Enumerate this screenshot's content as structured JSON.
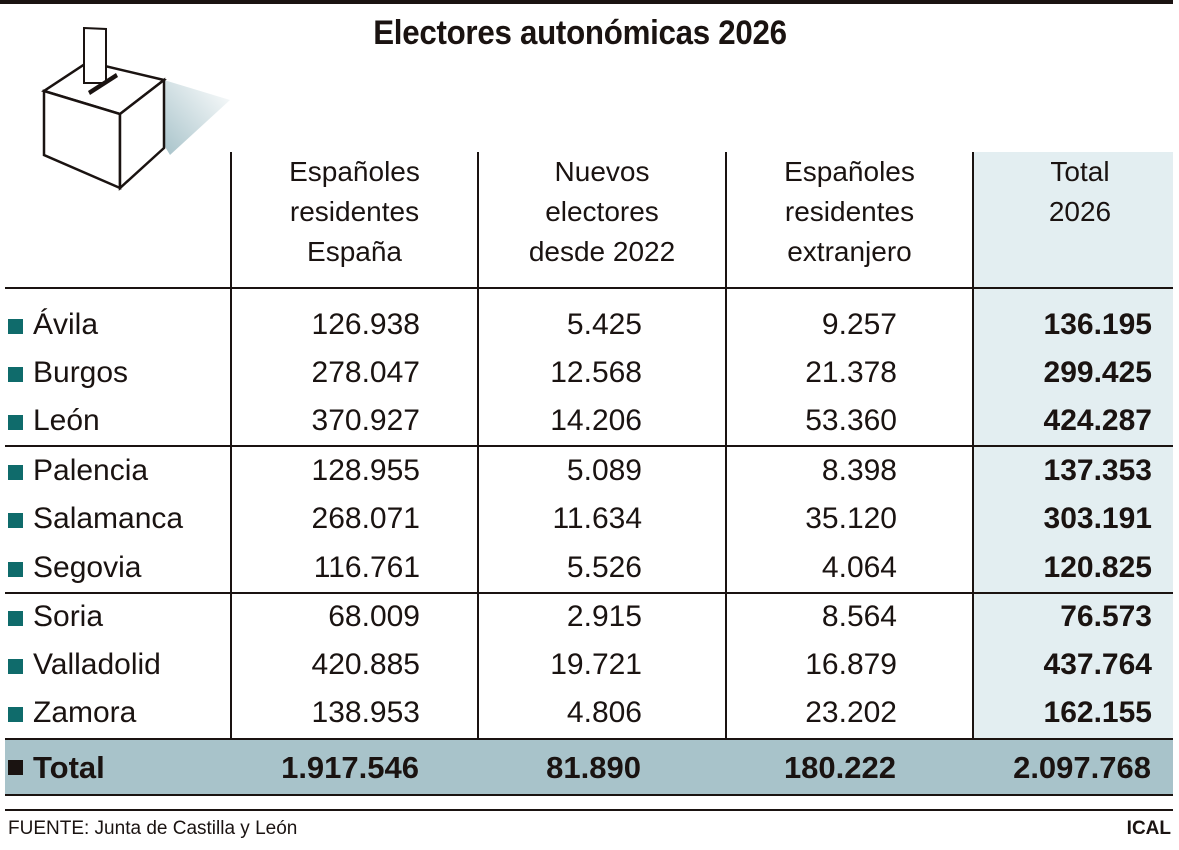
{
  "title": "Electores autonómicas 2026",
  "icon": "ballot-box-icon",
  "colors": {
    "marker": "#0f6b6b",
    "total_marker": "#1a1311",
    "total_column_bg": "#e3eef1",
    "total_row_bg": "#a8c3ca"
  },
  "chart_data": {
    "type": "table",
    "columns": [
      [
        "Españoles",
        "residentes",
        "España"
      ],
      [
        "Nuevos",
        "electores",
        "desde 2022"
      ],
      [
        "Españoles",
        "residentes",
        "extranjero"
      ],
      [
        "Total",
        "2026"
      ]
    ],
    "rows": [
      {
        "label": "Ávila",
        "values": [
          "126.938",
          "5.425",
          "9.257",
          "136.195"
        ]
      },
      {
        "label": "Burgos",
        "values": [
          "278.047",
          "12.568",
          "21.378",
          "299.425"
        ]
      },
      {
        "label": "León",
        "values": [
          "370.927",
          "14.206",
          "53.360",
          "424.287"
        ]
      },
      {
        "label": "Palencia",
        "values": [
          "128.955",
          "5.089",
          "8.398",
          "137.353"
        ]
      },
      {
        "label": "Salamanca",
        "values": [
          "268.071",
          "11.634",
          "35.120",
          "303.191"
        ]
      },
      {
        "label": "Segovia",
        "values": [
          "116.761",
          "5.526",
          "4.064",
          "120.825"
        ]
      },
      {
        "label": "Soria",
        "values": [
          "68.009",
          "2.915",
          "8.564",
          "76.573"
        ]
      },
      {
        "label": "Valladolid",
        "values": [
          "420.885",
          "19.721",
          "16.879",
          "437.764"
        ]
      },
      {
        "label": "Zamora",
        "values": [
          "138.953",
          "4.806",
          "23.202",
          "162.155"
        ]
      }
    ],
    "total": {
      "label": "Total",
      "values": [
        "1.917.546",
        "81.890",
        "180.222",
        "2.097.768"
      ]
    }
  },
  "footer": {
    "source": "FUENTE: Junta de Castilla y León",
    "credit": "ICAL"
  }
}
